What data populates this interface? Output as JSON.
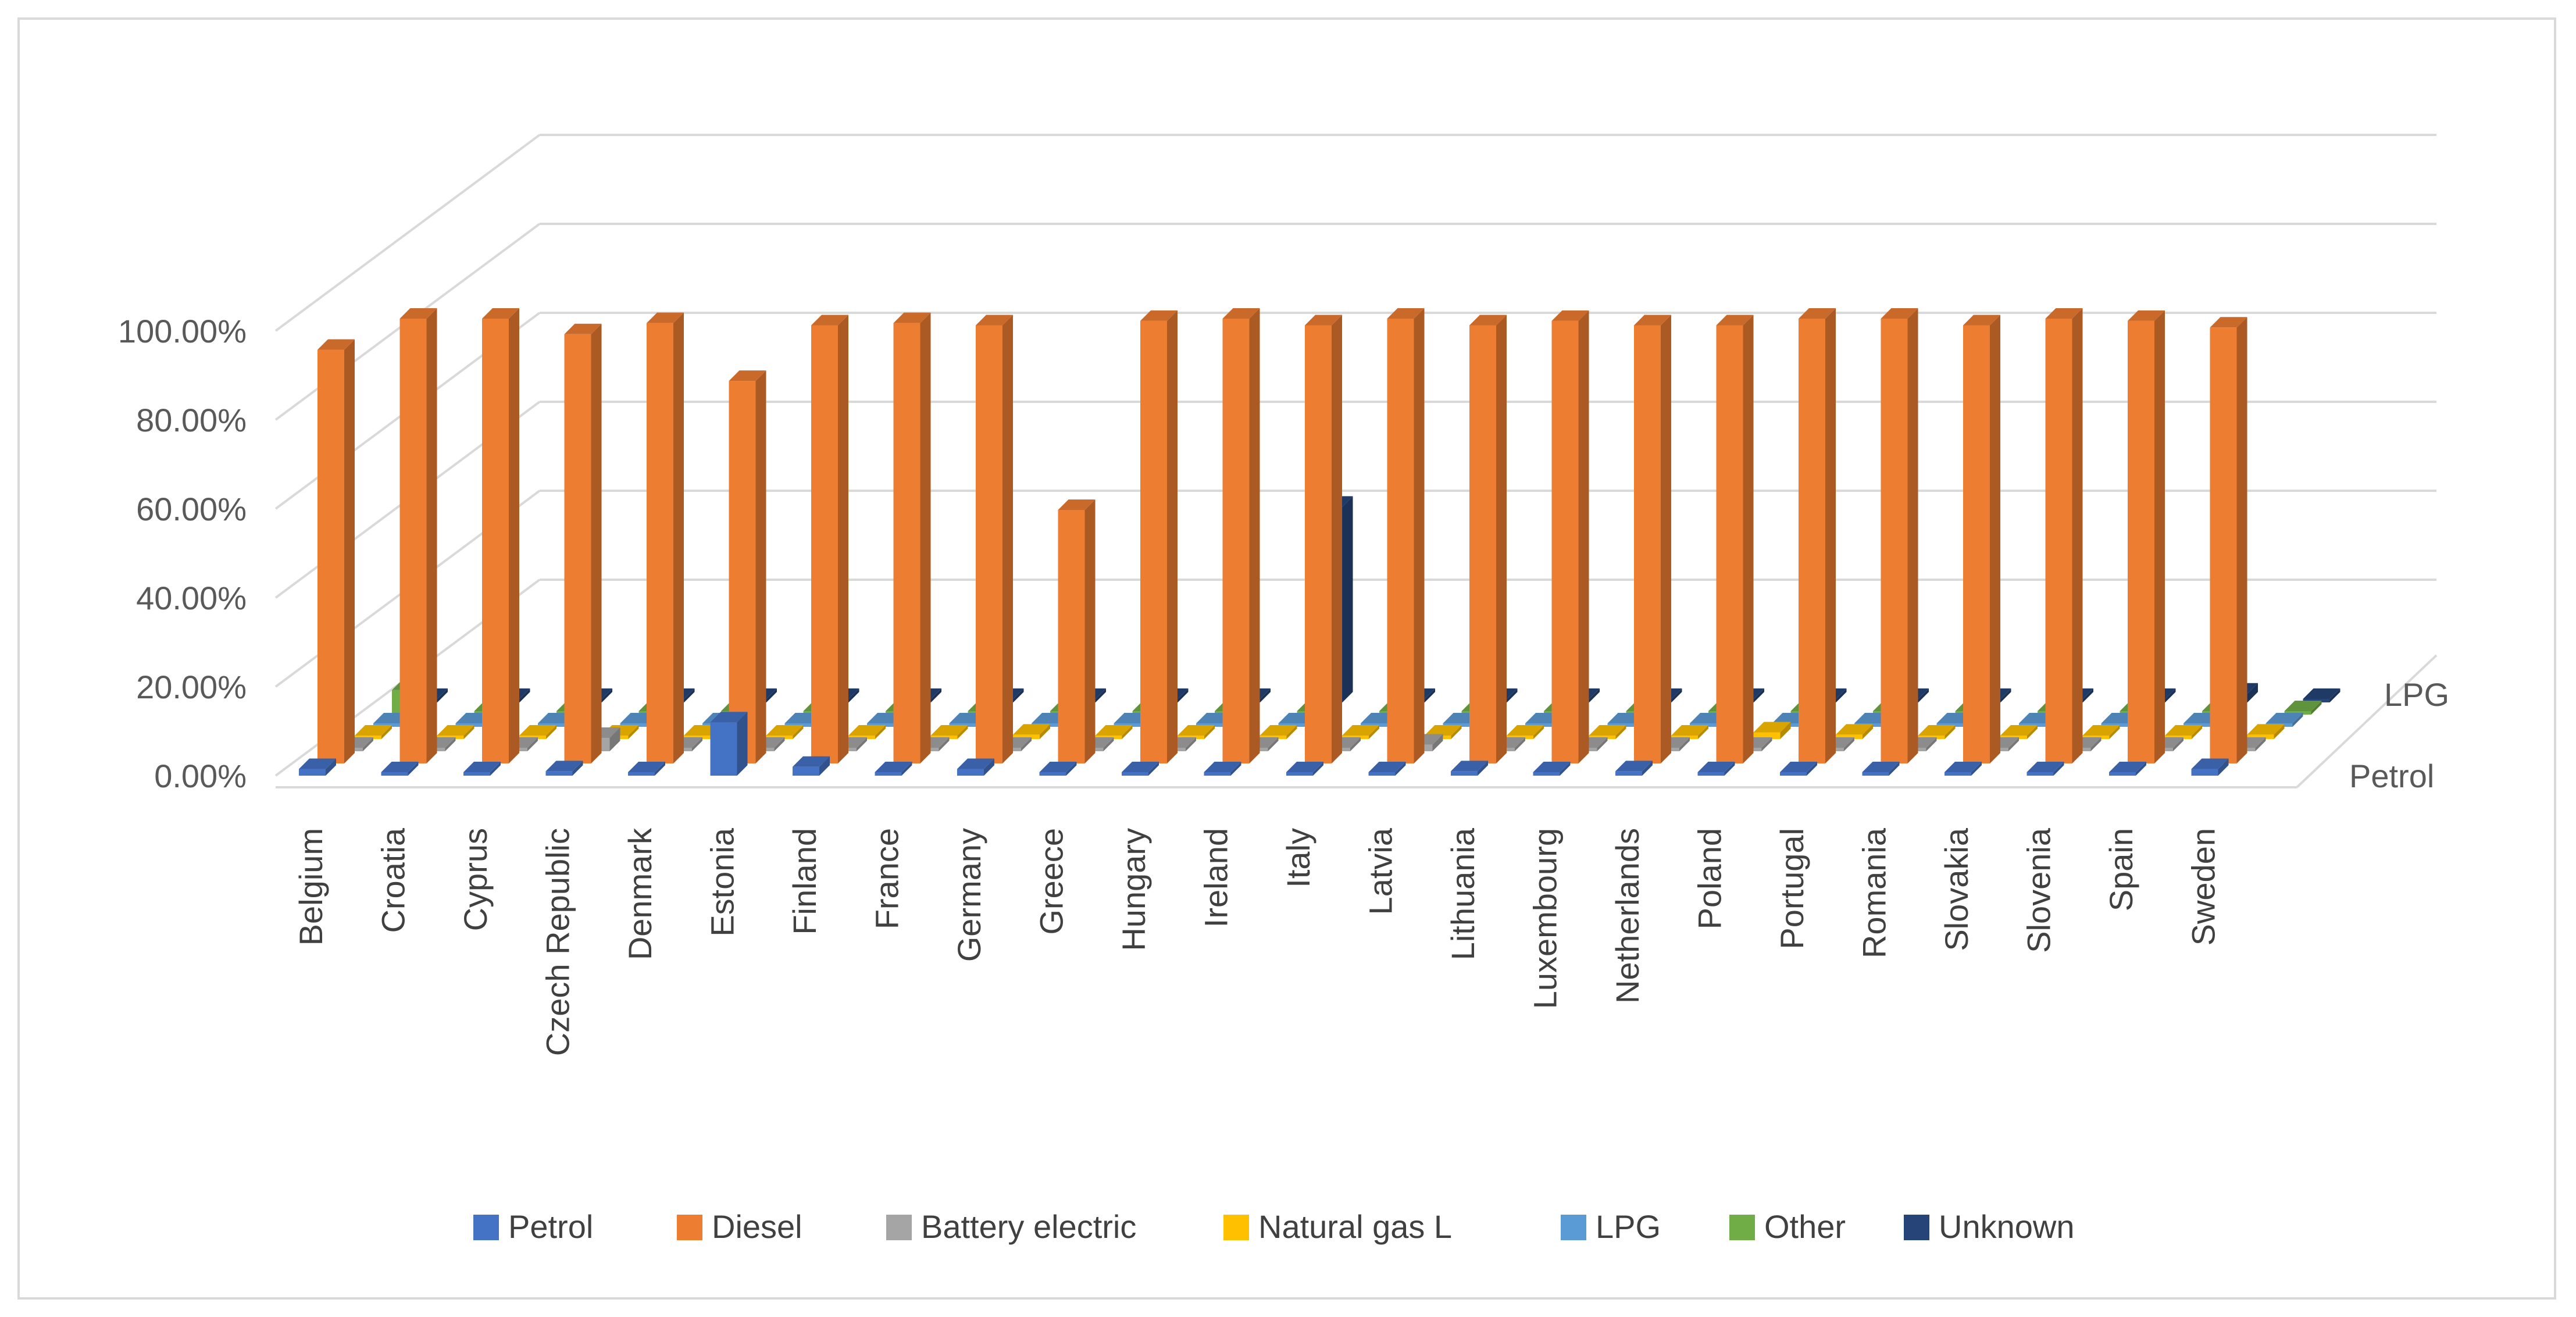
{
  "chart_data": {
    "type": "bar",
    "subtype": "3d-column",
    "title": "",
    "xlabel": "",
    "ylabel": "",
    "ylim": [
      0,
      100
    ],
    "y_ticks": [
      "0.00%",
      "20.00%",
      "40.00%",
      "60.00%",
      "80.00%",
      "100.00%"
    ],
    "depth_labels": [
      "Petrol",
      "LPG"
    ],
    "legend_position": "bottom",
    "categories": [
      "Belgium",
      "Croatia",
      "Cyprus",
      "Czech Republic",
      "Denmark",
      "Estonia",
      "Finland",
      "France",
      "Germany",
      "Greece",
      "Hungary",
      "Ireland",
      "Italy",
      "Latvia",
      "Lithuania",
      "Luxembourg",
      "Netherlands",
      "Poland",
      "Portugal",
      "Romania",
      "Slovakia",
      "Slovenia",
      "Spain",
      "Sweden"
    ],
    "series": [
      {
        "name": "Petrol",
        "color": "#4472c4",
        "values": [
          1.5,
          0.3,
          0.2,
          1.0,
          0.3,
          12.0,
          2.0,
          0.3,
          1.5,
          0.2,
          0.3,
          0.3,
          0.3,
          0.2,
          1.0,
          0.3,
          1.0,
          0.3,
          0.2,
          0.2,
          0.2,
          0.2,
          0.3,
          1.5
        ]
      },
      {
        "name": "Diesel",
        "color": "#ed7d31",
        "values": [
          93.0,
          100.0,
          100.0,
          96.5,
          99.0,
          86.0,
          98.5,
          99.0,
          98.5,
          57.0,
          99.5,
          100.0,
          98.5,
          100.0,
          98.5,
          99.5,
          98.5,
          98.5,
          100.0,
          100.0,
          98.5,
          100.0,
          99.5,
          98.0
        ]
      },
      {
        "name": "Battery electric",
        "color": "#a5a5a5",
        "values": [
          0,
          0,
          0,
          3.0,
          0,
          0,
          0,
          0,
          0,
          0,
          0,
          0,
          0,
          1.5,
          0,
          0,
          0,
          0,
          0,
          0,
          0,
          0,
          0,
          0
        ]
      },
      {
        "name": "Natural gas L",
        "color": "#ffc000",
        "values": [
          0,
          0,
          0,
          0,
          0,
          0,
          0,
          0,
          1.0,
          0,
          0,
          0,
          0,
          0,
          0,
          0,
          0,
          1.5,
          1.0,
          0,
          0,
          0,
          0,
          1.0
        ]
      },
      {
        "name": "LPG",
        "color": "#5b9bd5",
        "values": [
          0,
          0,
          0,
          0,
          0,
          0,
          0,
          0,
          0,
          0,
          0,
          0,
          0,
          0,
          0,
          0,
          0,
          0,
          0,
          0,
          0,
          0,
          0,
          0
        ]
      },
      {
        "name": "Other",
        "color": "#70ad47",
        "values": [
          5.5,
          0,
          0,
          0,
          0,
          0,
          0,
          0,
          0,
          0,
          0,
          0,
          0,
          0,
          0,
          0,
          0,
          0,
          0,
          0,
          0,
          0,
          0,
          0
        ]
      },
      {
        "name": "Unknown",
        "color": "#264478",
        "values": [
          0,
          0,
          0,
          0,
          0,
          0,
          0,
          0,
          0,
          0,
          0,
          44.0,
          0,
          0,
          0,
          0,
          0,
          0,
          0,
          0,
          0,
          0,
          2.0,
          0
        ]
      }
    ]
  }
}
